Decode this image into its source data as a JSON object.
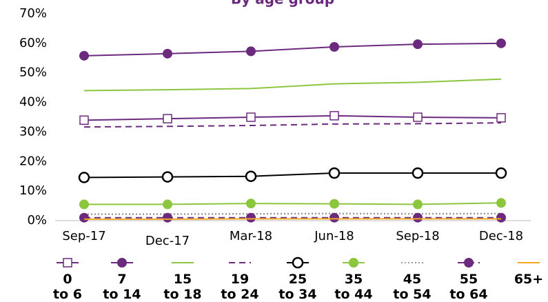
{
  "chart_data": {
    "type": "line",
    "title": "By age group",
    "categories": [
      "Sep-17",
      "Dec-17",
      "Mar-18",
      "Jun-18",
      "Sep-18",
      "Dec-18"
    ],
    "ylim": [
      0,
      70
    ],
    "yticks": [
      {
        "value": 0,
        "label": "0%"
      },
      {
        "value": 10,
        "label": "10%"
      },
      {
        "value": 20,
        "label": "20%"
      },
      {
        "value": 30,
        "label": "30%"
      },
      {
        "value": 40,
        "label": "40%"
      },
      {
        "value": 50,
        "label": "50%"
      },
      {
        "value": 60,
        "label": "60%"
      },
      {
        "value": 70,
        "label": "70%"
      }
    ],
    "series": [
      {
        "name": "0\nto 6",
        "color": "#6b2a7e",
        "dash": "solid",
        "marker": "square-open",
        "values": [
          34,
          34.5,
          35,
          35.5,
          35,
          34.8
        ]
      },
      {
        "name": "7\nto 14",
        "color": "#6b2a7e",
        "dash": "solid",
        "marker": "circle",
        "values": [
          55.8,
          56.5,
          57.3,
          58.8,
          59.7,
          60
        ]
      },
      {
        "name": "15\nto 18",
        "color": "#8cc63f",
        "dash": "solid",
        "marker": "none",
        "values": [
          44,
          44.3,
          44.7,
          46.3,
          46.8,
          47.9
        ]
      },
      {
        "name": "19\nto 24",
        "color": "#6b2a7e",
        "dash": "dashed",
        "marker": "none",
        "values": [
          31.7,
          31.9,
          32.2,
          32.7,
          32.8,
          33.1
        ]
      },
      {
        "name": "25\nto 34",
        "color": "#000000",
        "dash": "solid",
        "marker": "circle-open",
        "values": [
          14.6,
          14.8,
          15,
          16.1,
          16.1,
          16.1
        ]
      },
      {
        "name": "35\nto 44",
        "color": "#8cc63f",
        "dash": "solid",
        "marker": "circle",
        "values": [
          5.5,
          5.5,
          5.8,
          5.7,
          5.5,
          6
        ]
      },
      {
        "name": "45\nto 54",
        "color": "#999999",
        "dash": "dotted",
        "marker": "none",
        "values": [
          2.2,
          2.2,
          2.3,
          2.4,
          2.3,
          2.4
        ]
      },
      {
        "name": "55\nto 64",
        "color": "#6b2a7e",
        "dash": "dashed",
        "marker": "circle",
        "values": [
          1,
          1,
          1,
          1,
          1,
          1
        ]
      },
      {
        "name": "65+",
        "color": "#f5a623",
        "dash": "solid",
        "marker": "none",
        "values": [
          0.5,
          0.5,
          0.6,
          0.6,
          0.6,
          0.6
        ]
      }
    ]
  }
}
